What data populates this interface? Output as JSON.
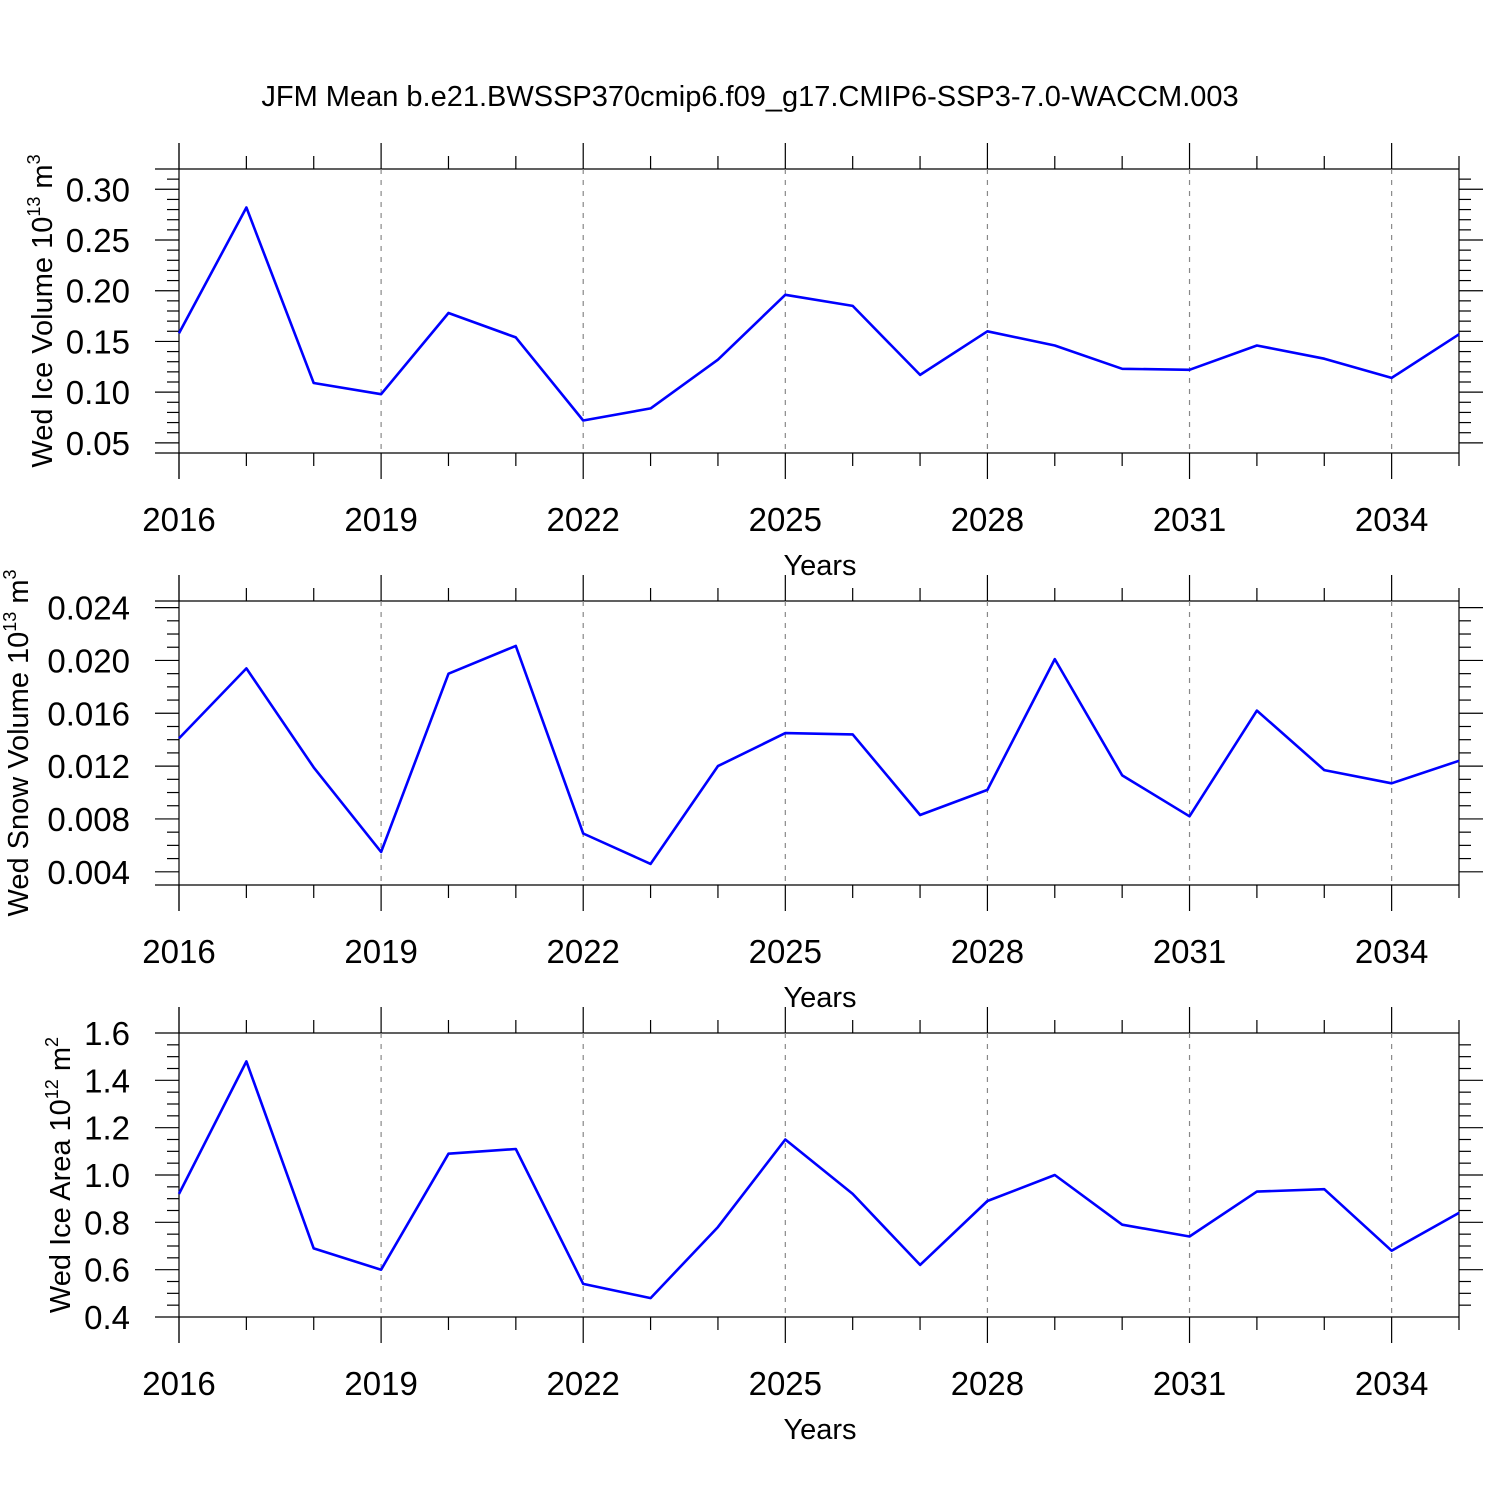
{
  "title": "JFM Mean b.e21.BWSSP370cmip6.f09_g17.CMIP6-SSP3-7.0-WACCM.003",
  "colors": {
    "series": "#0000ff",
    "axis": "#000000",
    "grid": "#888888"
  },
  "chart_data": [
    {
      "type": "line",
      "ylabel": {
        "main": "Wed Ice Volume 10",
        "sup": "13",
        "unit": " m",
        "unit_sup": "3"
      },
      "xlabel": "Years",
      "xlim": [
        2016,
        2035
      ],
      "ylim": [
        0.04,
        0.32
      ],
      "yticks": [
        0.05,
        0.1,
        0.15,
        0.2,
        0.25,
        0.3
      ],
      "yminor": 0.01,
      "ytick_labels": [
        "0.05",
        "0.10",
        "0.15",
        "0.20",
        "0.25",
        "0.30"
      ],
      "xticks": [
        2016,
        2019,
        2022,
        2025,
        2028,
        2031,
        2034
      ],
      "xtick_labels": [
        "2016",
        "2019",
        "2022",
        "2025",
        "2028",
        "2031",
        "2034"
      ],
      "grid": "vertical dashed at labeled years",
      "x": [
        2016,
        2017,
        2018,
        2019,
        2020,
        2021,
        2022,
        2023,
        2024,
        2025,
        2026,
        2027,
        2028,
        2029,
        2030,
        2031,
        2032,
        2033,
        2034,
        2035
      ],
      "values": [
        0.158,
        0.282,
        0.109,
        0.098,
        0.178,
        0.154,
        0.072,
        0.084,
        0.132,
        0.196,
        0.185,
        0.117,
        0.16,
        0.146,
        0.123,
        0.122,
        0.146,
        0.133,
        0.114,
        0.157
      ]
    },
    {
      "type": "line",
      "ylabel": {
        "main": "Wed Snow Volume 10",
        "sup": "13",
        "unit": " m",
        "unit_sup": "3"
      },
      "xlabel": "Years",
      "xlim": [
        2016,
        2035
      ],
      "ylim": [
        0.003,
        0.0245
      ],
      "yticks": [
        0.004,
        0.008,
        0.012,
        0.016,
        0.02,
        0.024
      ],
      "yminor": 0.001,
      "ytick_labels": [
        "0.004",
        "0.008",
        "0.012",
        "0.016",
        "0.020",
        "0.024"
      ],
      "xticks": [
        2016,
        2019,
        2022,
        2025,
        2028,
        2031,
        2034
      ],
      "xtick_labels": [
        "2016",
        "2019",
        "2022",
        "2025",
        "2028",
        "2031",
        "2034"
      ],
      "grid": "vertical dashed at labeled years",
      "x": [
        2016,
        2017,
        2018,
        2019,
        2020,
        2021,
        2022,
        2023,
        2024,
        2025,
        2026,
        2027,
        2028,
        2029,
        2030,
        2031,
        2032,
        2033,
        2034,
        2035
      ],
      "values": [
        0.0141,
        0.0194,
        0.0119,
        0.0055,
        0.019,
        0.0211,
        0.0069,
        0.0046,
        0.012,
        0.0145,
        0.0144,
        0.0083,
        0.0102,
        0.0201,
        0.0113,
        0.0082,
        0.0162,
        0.0117,
        0.0107,
        0.0124
      ]
    },
    {
      "type": "line",
      "ylabel": {
        "main": "Wed Ice Area 10",
        "sup": "12",
        "unit": " m",
        "unit_sup": "2"
      },
      "xlabel": "Years",
      "xlim": [
        2016,
        2035
      ],
      "ylim": [
        0.4,
        1.6
      ],
      "yticks": [
        0.4,
        0.6,
        0.8,
        1.0,
        1.2,
        1.4,
        1.6
      ],
      "yminor": 0.05,
      "ytick_labels": [
        "0.4",
        "0.6",
        "0.8",
        "1.0",
        "1.2",
        "1.4",
        "1.6"
      ],
      "xticks": [
        2016,
        2019,
        2022,
        2025,
        2028,
        2031,
        2034
      ],
      "xtick_labels": [
        "2016",
        "2019",
        "2022",
        "2025",
        "2028",
        "2031",
        "2034"
      ],
      "grid": "vertical dashed at labeled years",
      "x": [
        2016,
        2017,
        2018,
        2019,
        2020,
        2021,
        2022,
        2023,
        2024,
        2025,
        2026,
        2027,
        2028,
        2029,
        2030,
        2031,
        2032,
        2033,
        2034,
        2035
      ],
      "values": [
        0.92,
        1.48,
        0.69,
        0.6,
        1.09,
        1.11,
        0.54,
        0.48,
        0.78,
        1.15,
        0.92,
        0.62,
        0.89,
        1.0,
        0.79,
        0.74,
        0.93,
        0.94,
        0.68,
        0.84
      ]
    }
  ]
}
